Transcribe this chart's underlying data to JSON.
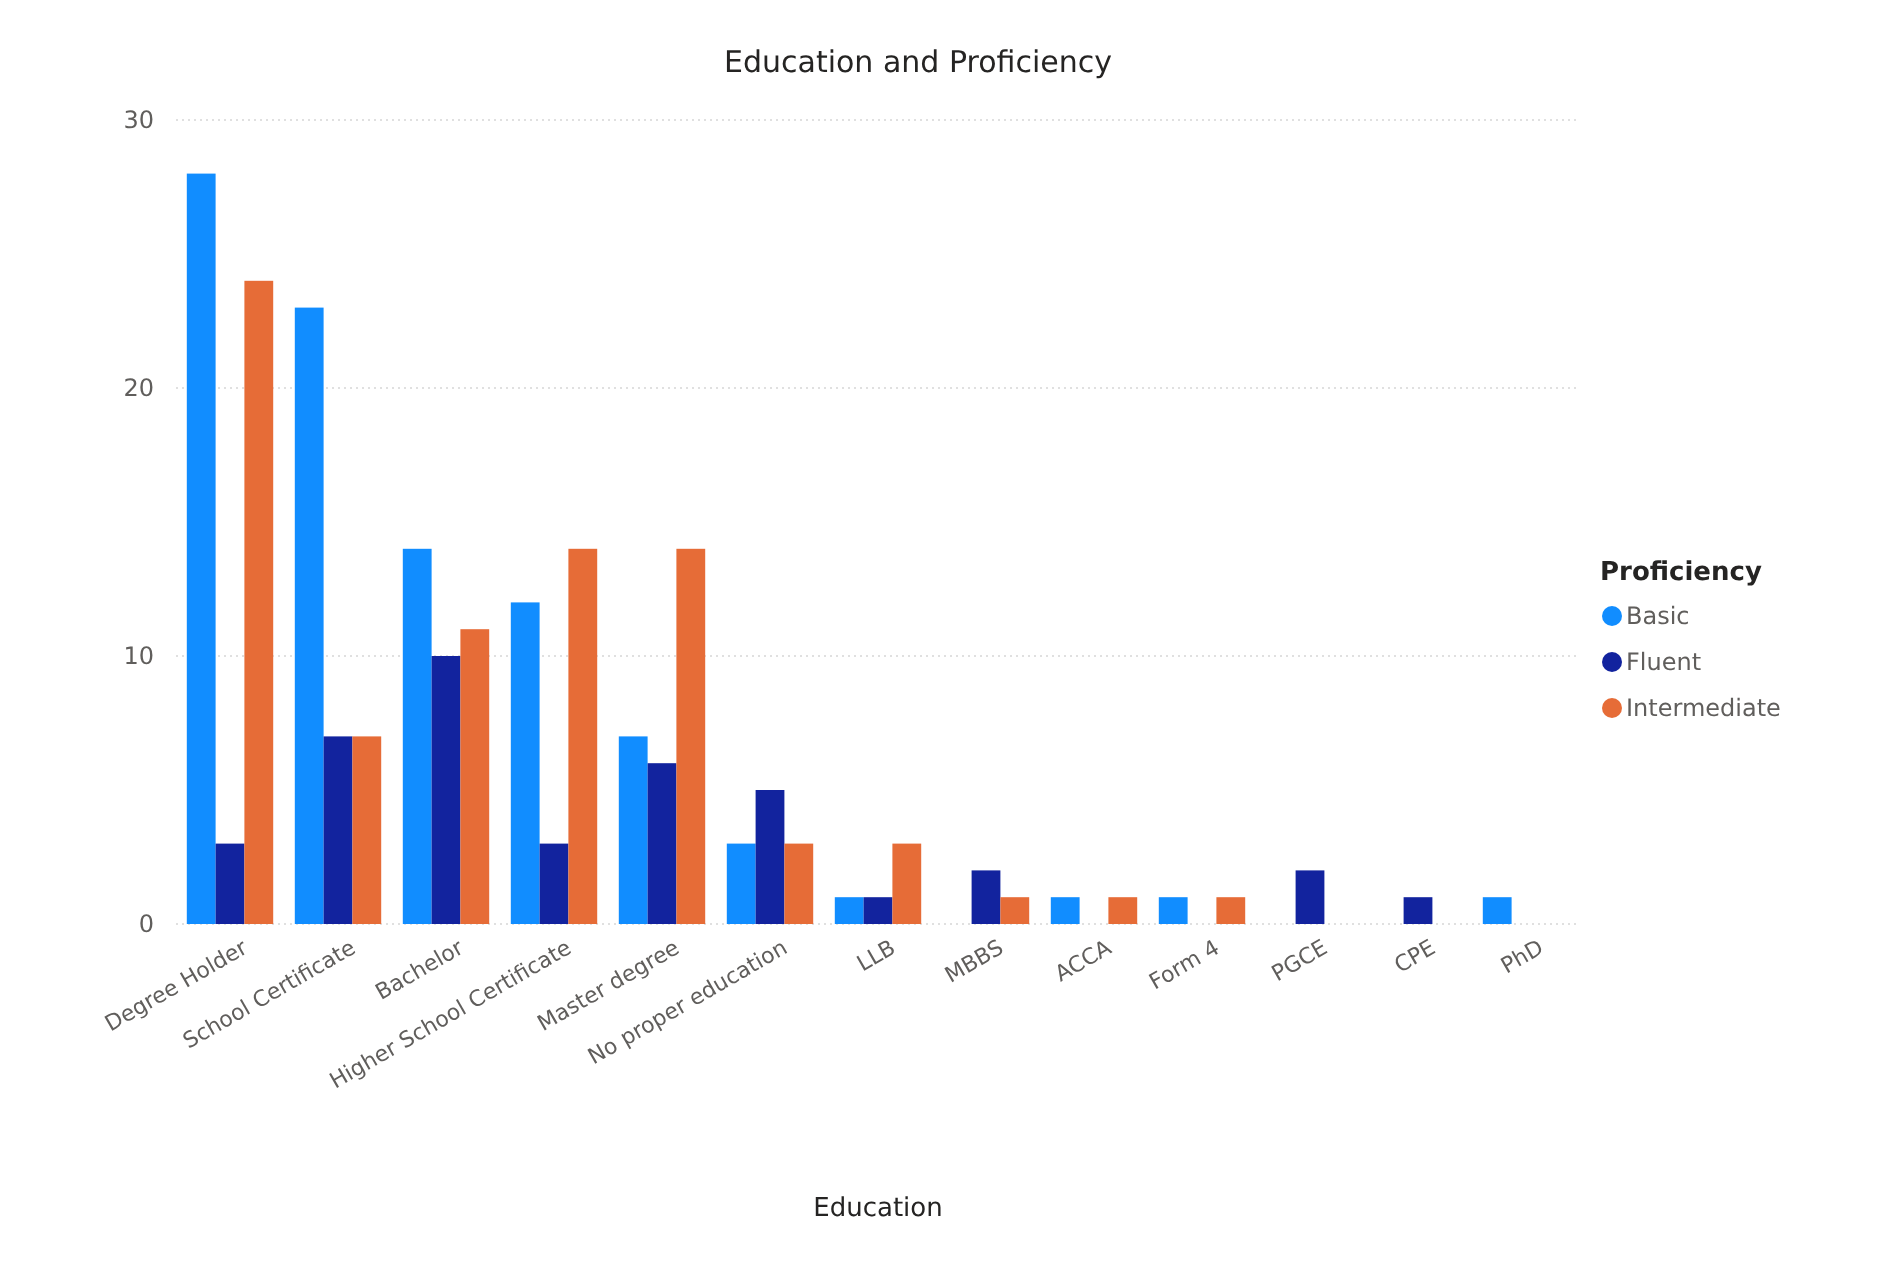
{
  "chart_data": {
    "type": "bar",
    "title": "Education and Proficiency",
    "xlabel": "Education",
    "legend_title": "Proficiency",
    "legend": "right",
    "grid": "y",
    "categories": [
      "Degree Holder",
      "School Certificate",
      "Bachelor",
      "Higher School Certificate",
      "Master degree",
      "No proper education",
      "LLB",
      "MBBS",
      "ACCA",
      "Form 4",
      "PGCE",
      "CPE",
      "PhD"
    ],
    "ylim": [
      0,
      30
    ],
    "yticks": [
      0,
      10,
      20,
      30
    ],
    "series": [
      {
        "name": "Basic",
        "color": "#118dff",
        "values": [
          28,
          23,
          14,
          12,
          7,
          3,
          1,
          null,
          1,
          1,
          null,
          null,
          1
        ]
      },
      {
        "name": "Fluent",
        "color": "#12239e",
        "values": [
          3,
          7,
          10,
          3,
          6,
          5,
          1,
          2,
          null,
          null,
          2,
          1,
          null
        ]
      },
      {
        "name": "Intermediate",
        "color": "#e66c37",
        "values": [
          24,
          7,
          11,
          14,
          14,
          3,
          3,
          1,
          1,
          1,
          null,
          null,
          null
        ]
      }
    ]
  }
}
